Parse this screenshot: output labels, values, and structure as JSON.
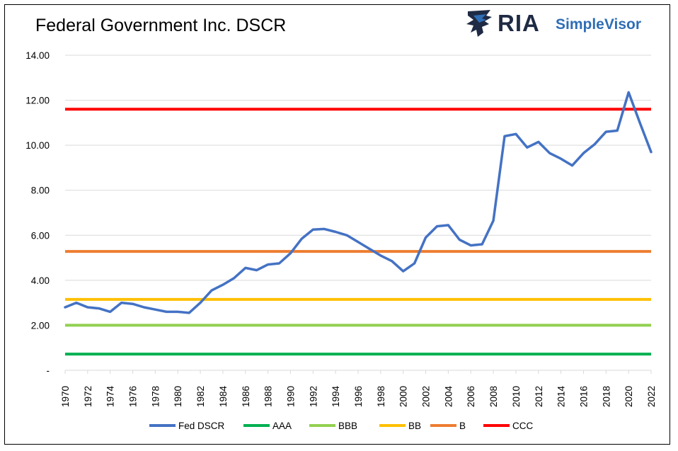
{
  "logo": {
    "primary": "RIA",
    "secondary": "SimpleVisor",
    "icon": "eagle-icon"
  },
  "colors": {
    "fed": "#4472c4",
    "aaa": "#00b050",
    "bbb": "#92d050",
    "bb": "#ffc000",
    "b": "#ed7d31",
    "ccc": "#ff0000",
    "grid": "#d9d9d9",
    "logo_dark": "#1f2a44",
    "logo_blue": "#2f6db5"
  },
  "chart_data": {
    "type": "line",
    "title": "Federal Government Inc. DSCR",
    "xlabel": "",
    "ylabel": "",
    "ylim": [
      0,
      14
    ],
    "y_ticks": [
      0,
      2,
      4,
      6,
      8,
      10,
      12,
      14
    ],
    "y_tick_labels": [
      "-",
      "2.00",
      "4.00",
      "6.00",
      "8.00",
      "10.00",
      "12.00",
      "14.00"
    ],
    "x": [
      1970,
      1971,
      1972,
      1973,
      1974,
      1975,
      1976,
      1977,
      1978,
      1979,
      1980,
      1981,
      1982,
      1983,
      1984,
      1985,
      1986,
      1987,
      1988,
      1989,
      1990,
      1991,
      1992,
      1993,
      1994,
      1995,
      1996,
      1997,
      1998,
      1999,
      2000,
      2001,
      2002,
      2003,
      2004,
      2005,
      2006,
      2007,
      2008,
      2009,
      2010,
      2011,
      2012,
      2013,
      2014,
      2015,
      2016,
      2017,
      2018,
      2019,
      2020,
      2021,
      2022
    ],
    "x_tick_labels": [
      "1970",
      "1972",
      "1974",
      "1976",
      "1978",
      "1980",
      "1982",
      "1984",
      "1986",
      "1988",
      "1990",
      "1992",
      "1994",
      "1996",
      "1998",
      "2000",
      "2002",
      "2004",
      "2006",
      "2008",
      "2010",
      "2012",
      "2014",
      "2016",
      "2018",
      "2020",
      "2022"
    ],
    "grid": "horizontal",
    "legend_position": "bottom",
    "series": [
      {
        "name": "Fed DSCR",
        "color_key": "fed",
        "values": [
          2.8,
          3.0,
          2.8,
          2.75,
          2.6,
          3.0,
          2.95,
          2.8,
          2.7,
          2.6,
          2.6,
          2.55,
          3.0,
          3.55,
          3.8,
          4.1,
          4.55,
          4.45,
          4.7,
          4.75,
          5.2,
          5.85,
          6.25,
          6.28,
          6.15,
          6.0,
          5.7,
          5.4,
          5.1,
          4.85,
          4.4,
          4.75,
          5.9,
          6.4,
          6.45,
          5.8,
          5.55,
          5.6,
          6.65,
          10.4,
          10.5,
          9.9,
          10.15,
          9.65,
          9.4,
          9.1,
          9.65,
          10.05,
          10.6,
          10.65,
          12.35,
          11.0,
          9.7
        ]
      },
      {
        "name": "AAA",
        "color_key": "aaa",
        "constant": 0.72
      },
      {
        "name": "BBB",
        "color_key": "bbb",
        "constant": 2.0
      },
      {
        "name": "BB",
        "color_key": "bb",
        "constant": 3.15
      },
      {
        "name": "B",
        "color_key": "b",
        "constant": 5.28
      },
      {
        "name": "CCC",
        "color_key": "ccc",
        "constant": 11.6
      }
    ]
  }
}
